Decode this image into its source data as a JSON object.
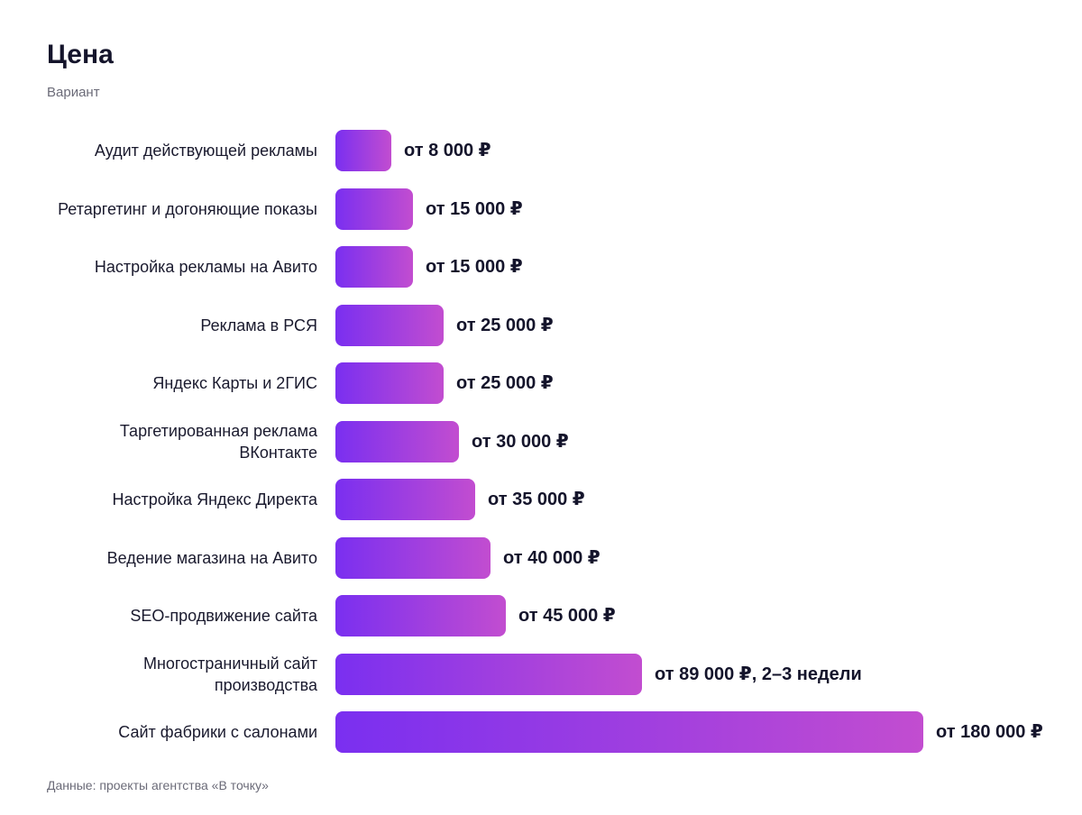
{
  "header": {
    "title": "Цена",
    "subtitle": "Вариант"
  },
  "footer": {
    "source": "Данные: проекты агентства «В точку»"
  },
  "colors": {
    "bar_start": "#7a2ff0",
    "bar_end": "#c24dd0",
    "text": "#14142b",
    "muted": "#6b6b78"
  },
  "chart_data": {
    "type": "bar",
    "orientation": "horizontal",
    "title": "Цена",
    "subtitle": "Вариант",
    "unit": "₽",
    "categories": [
      "Аудит действующей рекламы",
      "Ретаргетинг и догоняющие показы",
      "Настройка рекламы на Авито",
      "Реклама в РСЯ",
      "Яндекс Карты и 2ГИС",
      "Таргетированная реклама ВКонтакте",
      "Настройка Яндекс Директа",
      "Ведение магазина на Авито",
      "SEO-продвижение сайта",
      "Многостраничный сайт производства",
      "Сайт фабрики с салонами"
    ],
    "values": [
      8000,
      15000,
      15000,
      25000,
      25000,
      30000,
      35000,
      40000,
      45000,
      89000,
      180000
    ],
    "value_labels": [
      "от 8 000 ₽",
      "от 15 000 ₽",
      "от 15 000 ₽",
      "от 25 000 ₽",
      "от 25 000 ₽",
      "от 30 000 ₽",
      "от 35 000 ₽",
      "от 40 000 ₽",
      "от 45 000 ₽",
      "от 89 000 ₽, 2–3 недели",
      "от 180 000 ₽"
    ],
    "xlim": [
      0,
      180000
    ],
    "grid": false,
    "legend": "none"
  }
}
